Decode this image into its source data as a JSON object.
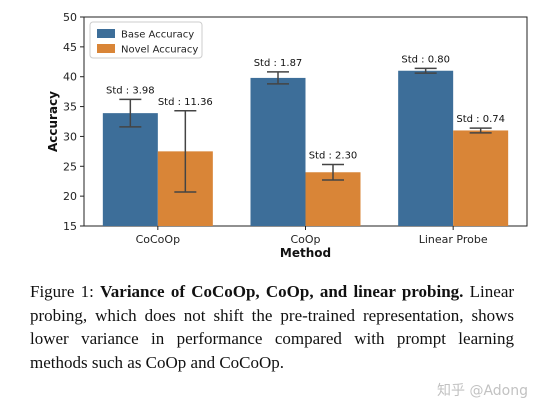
{
  "chart_data": {
    "type": "bar",
    "xlabel": "Method",
    "ylabel": "Accuracy",
    "categories": [
      "CoCoOp",
      "CoOp",
      "Linear Probe"
    ],
    "ylim": [
      15,
      50
    ],
    "yticks": [
      15,
      20,
      25,
      30,
      35,
      40,
      45,
      50
    ],
    "grid": false,
    "legend_position": "top-left",
    "series": [
      {
        "name": "Base Accuracy",
        "color": "#3d6e99",
        "values": [
          33.9,
          39.8,
          41.0
        ],
        "errors": [
          2.3,
          1.0,
          0.4
        ],
        "std_labels": [
          "Std : 3.98",
          "Std : 1.87",
          "Std : 0.80"
        ]
      },
      {
        "name": "Novel Accuracy",
        "color": "#d98537",
        "values": [
          27.5,
          24.0,
          31.0
        ],
        "errors": [
          6.8,
          1.3,
          0.4
        ],
        "std_labels": [
          "Std : 11.36",
          "Std : 2.30",
          "Std : 0.74"
        ]
      }
    ]
  },
  "caption": {
    "label": "Figure 1:",
    "bold": "Variance of CoCoOp, CoOp, and linear probing.",
    "text": "Linear probing, which does not shift the pre-trained representation, shows lower variance in performance compared with prompt learning methods such as CoOp and CoCoOp."
  },
  "watermark": "知乎 @Adong"
}
